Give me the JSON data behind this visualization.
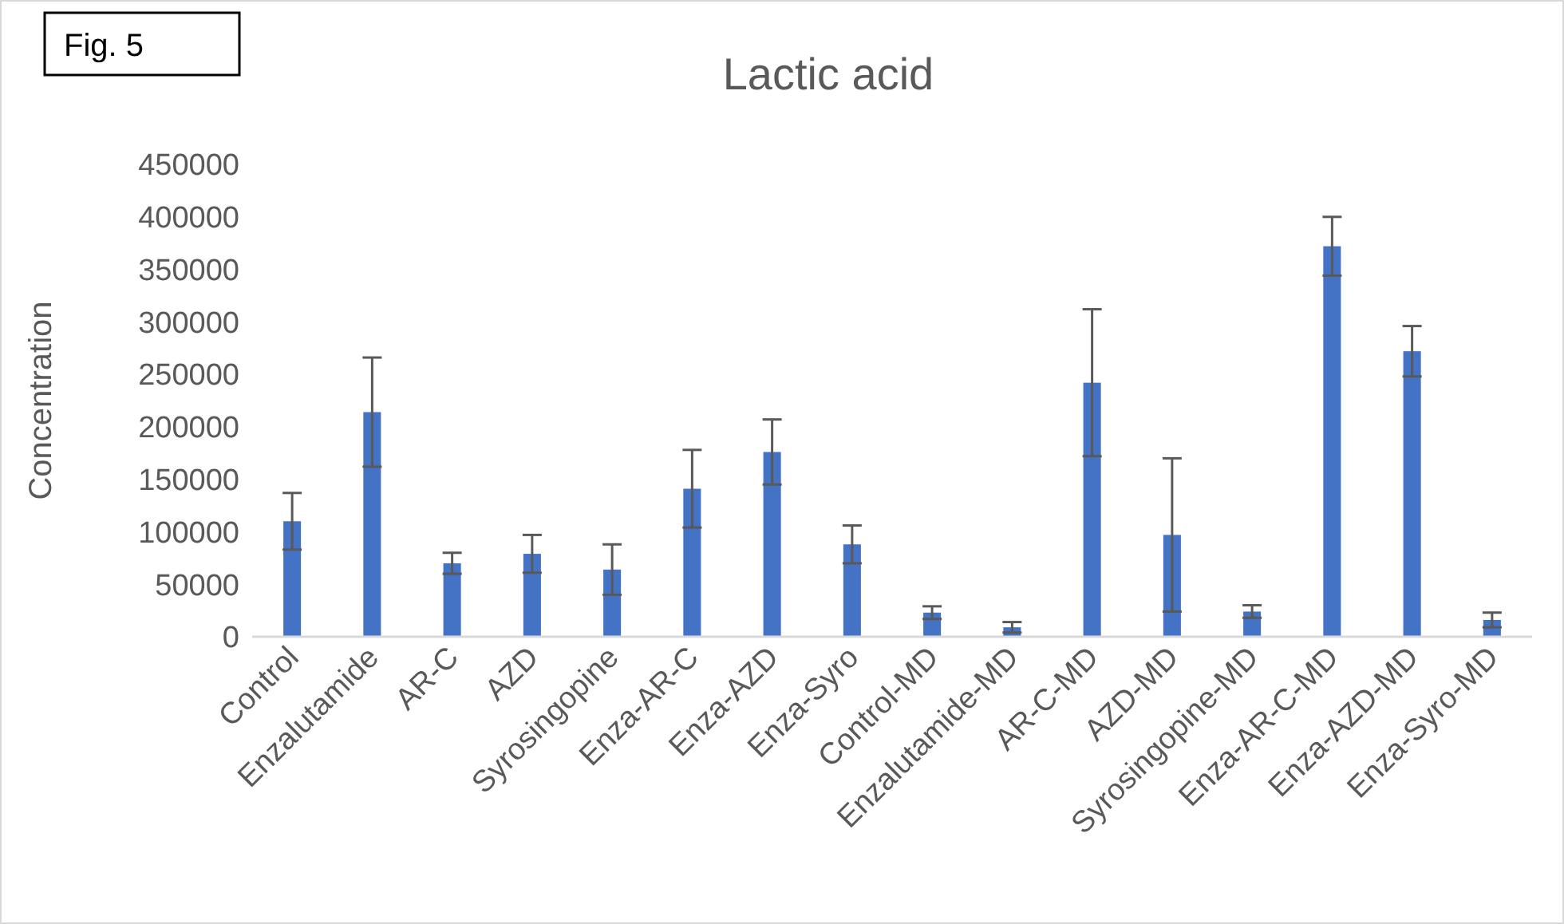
{
  "chart_data": {
    "type": "bar",
    "title": "Lactic acid",
    "ylabel": "Concentration",
    "annotations": [
      "Fig. 5"
    ],
    "categories": [
      "Control",
      "Enzalutamide",
      "AR-C",
      "AZD",
      "Syrosingopine",
      "Enza-AR-C",
      "Enza-AZD",
      "Enza-Syro",
      "Control-MD",
      "Enzalutamide-MD",
      "AR-C-MD",
      "AZD-MD",
      "Syrosingopine-MD",
      "Enza-AR-C-MD",
      "Enza-AZD-MD",
      "Enza-Syro-MD"
    ],
    "values": [
      110000,
      214000,
      70000,
      79000,
      64000,
      141000,
      176000,
      88000,
      23000,
      9000,
      242000,
      97000,
      24000,
      372000,
      272000,
      16000
    ],
    "errors": [
      27000,
      52000,
      10000,
      18000,
      24000,
      37000,
      31000,
      18000,
      6000,
      5000,
      70000,
      73000,
      6000,
      28000,
      24000,
      7000
    ],
    "color": "#4472c4",
    "ylim": [
      0,
      450000
    ],
    "yticks": [
      0,
      50000,
      100000,
      150000,
      200000,
      250000,
      300000,
      350000,
      400000,
      450000
    ],
    "grid": false
  }
}
